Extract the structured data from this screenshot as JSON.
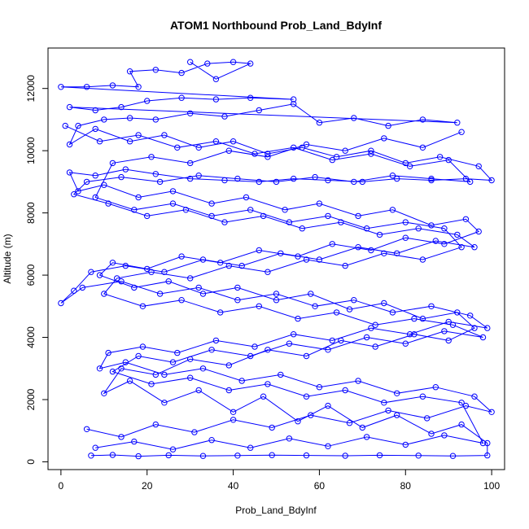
{
  "chart_data": {
    "type": "scatter",
    "title": "ATOM1 Northbound Prob_Land_BdyInf",
    "xlabel": "Prob_Land_BdyInf",
    "ylabel": "Altitude (m)",
    "xlim": [
      -3,
      103
    ],
    "ylim": [
      -250,
      13300
    ],
    "x_ticks": [
      0,
      20,
      40,
      60,
      80,
      100
    ],
    "y_ticks": [
      0,
      2000,
      4000,
      6000,
      8000,
      10000,
      12000
    ],
    "x_tick_labels": [
      "0",
      "20",
      "40",
      "60",
      "80",
      "100"
    ],
    "y_tick_labels": [
      "0",
      "2000",
      "4000",
      "6000",
      "8000",
      "10000",
      "12000"
    ],
    "grid": false,
    "connected": true,
    "marker": "open-circle",
    "color": "#0000ff",
    "series": [
      {
        "points": [
          [
            7,
            200
          ],
          [
            12,
            220
          ],
          [
            18,
            180
          ],
          [
            25,
            210
          ],
          [
            33,
            190
          ],
          [
            41,
            200
          ],
          [
            49,
            215
          ],
          [
            57,
            205
          ],
          [
            66,
            195
          ],
          [
            74,
            210
          ],
          [
            83,
            200
          ],
          [
            91,
            190
          ],
          [
            99,
            205
          ],
          [
            99,
            600
          ],
          [
            93,
            1200
          ],
          [
            86,
            900
          ],
          [
            78,
            1500
          ],
          [
            70,
            1100
          ],
          [
            62,
            1800
          ],
          [
            55,
            1300
          ],
          [
            47,
            2100
          ],
          [
            40,
            1600
          ],
          [
            32,
            2300
          ],
          [
            24,
            1900
          ],
          [
            16,
            2600
          ],
          [
            10,
            2200
          ],
          [
            14,
            3000
          ],
          [
            22,
            2800
          ],
          [
            30,
            3300
          ],
          [
            39,
            3100
          ],
          [
            48,
            3600
          ],
          [
            57,
            3400
          ],
          [
            65,
            3900
          ],
          [
            73,
            3700
          ],
          [
            82,
            4100
          ],
          [
            90,
            3900
          ],
          [
            96,
            4300
          ],
          [
            92,
            4800
          ],
          [
            84,
            4600
          ],
          [
            75,
            5100
          ],
          [
            67,
            4900
          ],
          [
            58,
            5400
          ],
          [
            50,
            5200
          ],
          [
            41,
            5600
          ],
          [
            33,
            5400
          ],
          [
            25,
            5800
          ],
          [
            17,
            5600
          ],
          [
            9,
            6000
          ],
          [
            12,
            6400
          ],
          [
            20,
            6200
          ],
          [
            28,
            6600
          ],
          [
            37,
            6400
          ],
          [
            46,
            6800
          ],
          [
            55,
            6600
          ],
          [
            63,
            7000
          ],
          [
            72,
            6800
          ],
          [
            80,
            7200
          ],
          [
            89,
            7000
          ],
          [
            97,
            7400
          ],
          [
            94,
            7800
          ],
          [
            86,
            7600
          ],
          [
            77,
            8100
          ],
          [
            69,
            7900
          ],
          [
            60,
            8300
          ],
          [
            52,
            8100
          ],
          [
            43,
            8500
          ],
          [
            35,
            8300
          ],
          [
            26,
            8700
          ],
          [
            18,
            8500
          ],
          [
            10,
            8900
          ],
          [
            4,
            8700
          ],
          [
            2,
            9300
          ],
          [
            8,
            9200
          ],
          [
            15,
            9400
          ],
          [
            22,
            9250
          ],
          [
            30,
            9100
          ],
          [
            38,
            9050
          ],
          [
            46,
            9000
          ],
          [
            54,
            9100
          ],
          [
            62,
            9050
          ],
          [
            70,
            9000
          ],
          [
            78,
            9100
          ],
          [
            86,
            9050
          ],
          [
            94,
            9100
          ],
          [
            100,
            9050
          ],
          [
            97,
            9500
          ],
          [
            88,
            9800
          ],
          [
            80,
            9600
          ],
          [
            72,
            10000
          ],
          [
            64,
            9800
          ],
          [
            56,
            10100
          ],
          [
            48,
            9900
          ],
          [
            40,
            10300
          ],
          [
            32,
            10100
          ],
          [
            24,
            10500
          ],
          [
            16,
            10300
          ],
          [
            8,
            10700
          ],
          [
            2,
            10200
          ],
          [
            4,
            10800
          ],
          [
            10,
            11000
          ],
          [
            16,
            11050
          ],
          [
            22,
            11000
          ],
          [
            30,
            11200
          ],
          [
            38,
            11100
          ],
          [
            46,
            11300
          ],
          [
            54,
            11500
          ],
          [
            60,
            10900
          ],
          [
            68,
            11050
          ],
          [
            76,
            10800
          ],
          [
            84,
            11000
          ],
          [
            92,
            10900
          ],
          [
            2,
            11400
          ],
          [
            8,
            11300
          ],
          [
            14,
            11400
          ],
          [
            20,
            11600
          ],
          [
            28,
            11700
          ],
          [
            36,
            11650
          ],
          [
            44,
            11700
          ],
          [
            54,
            11650
          ],
          [
            0,
            12050
          ],
          [
            6,
            12050
          ],
          [
            12,
            12100
          ],
          [
            18,
            12050
          ],
          [
            16,
            12550
          ],
          [
            22,
            12600
          ],
          [
            28,
            12500
          ],
          [
            34,
            12800
          ],
          [
            40,
            12850
          ],
          [
            44,
            12800
          ],
          [
            36,
            12300
          ],
          [
            30,
            12850
          ]
        ]
      },
      {
        "points": [
          [
            6,
            1050
          ],
          [
            14,
            800
          ],
          [
            22,
            1200
          ],
          [
            31,
            950
          ],
          [
            40,
            1350
          ],
          [
            49,
            1100
          ],
          [
            58,
            1500
          ],
          [
            67,
            1250
          ],
          [
            76,
            1650
          ],
          [
            85,
            1400
          ],
          [
            94,
            1800
          ],
          [
            100,
            1600
          ],
          [
            96,
            2100
          ],
          [
            87,
            2400
          ],
          [
            78,
            2200
          ],
          [
            69,
            2600
          ],
          [
            60,
            2400
          ],
          [
            51,
            2800
          ],
          [
            42,
            2600
          ],
          [
            33,
            3000
          ],
          [
            24,
            2800
          ],
          [
            15,
            3200
          ],
          [
            9,
            3000
          ],
          [
            11,
            3500
          ],
          [
            19,
            3700
          ],
          [
            27,
            3500
          ],
          [
            36,
            3900
          ],
          [
            45,
            3700
          ],
          [
            54,
            4100
          ],
          [
            63,
            3900
          ],
          [
            72,
            4300
          ],
          [
            81,
            4100
          ],
          [
            90,
            4500
          ],
          [
            99,
            4300
          ],
          [
            95,
            4700
          ],
          [
            86,
            5000
          ],
          [
            77,
            4800
          ],
          [
            68,
            5200
          ],
          [
            59,
            5000
          ],
          [
            50,
            5400
          ],
          [
            41,
            5200
          ],
          [
            32,
            5600
          ],
          [
            23,
            5400
          ],
          [
            14,
            5800
          ],
          [
            5,
            5600
          ],
          [
            0,
            5100
          ],
          [
            3,
            5500
          ],
          [
            7,
            6100
          ],
          [
            15,
            6300
          ],
          [
            24,
            6100
          ],
          [
            33,
            6500
          ],
          [
            42,
            6300
          ],
          [
            51,
            6700
          ],
          [
            60,
            6500
          ],
          [
            69,
            6900
          ],
          [
            78,
            6700
          ],
          [
            87,
            7100
          ],
          [
            96,
            6900
          ],
          [
            92,
            7300
          ],
          [
            83,
            7500
          ],
          [
            74,
            7300
          ],
          [
            65,
            7700
          ],
          [
            56,
            7500
          ],
          [
            47,
            7900
          ],
          [
            38,
            7700
          ],
          [
            29,
            8100
          ],
          [
            20,
            7900
          ],
          [
            11,
            8300
          ],
          [
            3,
            8600
          ],
          [
            6,
            9000
          ],
          [
            14,
            9150
          ],
          [
            23,
            9000
          ],
          [
            32,
            9200
          ],
          [
            41,
            9100
          ],
          [
            50,
            9000
          ],
          [
            59,
            9150
          ],
          [
            68,
            9000
          ],
          [
            77,
            9200
          ],
          [
            86,
            9100
          ],
          [
            95,
            9000
          ],
          [
            90,
            9700
          ],
          [
            81,
            9500
          ],
          [
            72,
            9900
          ],
          [
            63,
            9700
          ],
          [
            54,
            10100
          ],
          [
            45,
            9900
          ],
          [
            36,
            10300
          ],
          [
            27,
            10100
          ],
          [
            18,
            10500
          ],
          [
            9,
            10300
          ],
          [
            1,
            10800
          ]
        ]
      },
      {
        "points": [
          [
            8,
            450
          ],
          [
            17,
            650
          ],
          [
            26,
            400
          ],
          [
            35,
            700
          ],
          [
            44,
            450
          ],
          [
            53,
            750
          ],
          [
            62,
            500
          ],
          [
            71,
            800
          ],
          [
            80,
            550
          ],
          [
            89,
            850
          ],
          [
            98,
            600
          ],
          [
            93,
            1900
          ],
          [
            84,
            2100
          ],
          [
            75,
            1900
          ],
          [
            66,
            2300
          ],
          [
            57,
            2100
          ],
          [
            48,
            2500
          ],
          [
            39,
            2300
          ],
          [
            30,
            2700
          ],
          [
            21,
            2500
          ],
          [
            12,
            2900
          ],
          [
            18,
            3400
          ],
          [
            26,
            3200
          ],
          [
            35,
            3600
          ],
          [
            44,
            3400
          ],
          [
            53,
            3800
          ],
          [
            62,
            3600
          ],
          [
            71,
            4000
          ],
          [
            80,
            3800
          ],
          [
            89,
            4200
          ],
          [
            98,
            4000
          ],
          [
            91,
            4400
          ],
          [
            82,
            4600
          ],
          [
            73,
            4400
          ],
          [
            64,
            4800
          ],
          [
            55,
            4600
          ],
          [
            46,
            5000
          ],
          [
            37,
            4800
          ],
          [
            28,
            5200
          ],
          [
            19,
            5000
          ],
          [
            10,
            5400
          ],
          [
            13,
            5900
          ],
          [
            21,
            6100
          ],
          [
            30,
            5900
          ],
          [
            39,
            6300
          ],
          [
            48,
            6100
          ],
          [
            57,
            6500
          ],
          [
            66,
            6300
          ],
          [
            75,
            6700
          ],
          [
            84,
            6500
          ],
          [
            93,
            6900
          ],
          [
            89,
            7500
          ],
          [
            80,
            7700
          ],
          [
            71,
            7500
          ],
          [
            62,
            7900
          ],
          [
            53,
            7700
          ],
          [
            44,
            8100
          ],
          [
            35,
            7900
          ],
          [
            26,
            8300
          ],
          [
            17,
            8100
          ],
          [
            8,
            8500
          ],
          [
            12,
            9600
          ],
          [
            21,
            9800
          ],
          [
            30,
            9600
          ],
          [
            39,
            10000
          ],
          [
            48,
            9800
          ],
          [
            57,
            10200
          ],
          [
            66,
            10000
          ],
          [
            75,
            10400
          ],
          [
            84,
            10100
          ],
          [
            93,
            10600
          ]
        ]
      }
    ]
  }
}
